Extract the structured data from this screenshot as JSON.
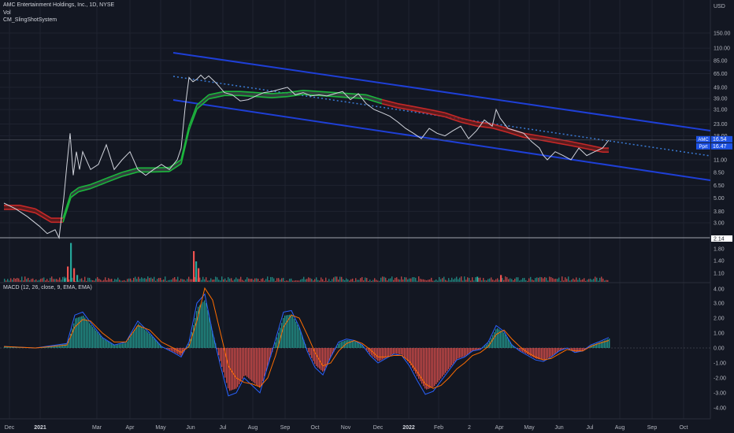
{
  "title_line": "AMC Entertainment Holdings, Inc., 1D, NYSE",
  "vol_label": "Vol",
  "indicator_label": "CM_SlingShotSystem",
  "macd_label": "MACD (12, 26, close, 9, EMA, EMA)",
  "currency": "USD",
  "colors": {
    "background": "#131722",
    "grid": "#1f2330",
    "price": "#d1d4dc",
    "ema_bull": "#1bb63c",
    "ema_bear": "#c62828",
    "channel": "#1e3fd6",
    "channel_mid": "#3a7bd5",
    "vol_up": "#26a69a",
    "vol_down": "#ef5350",
    "macd_line": "#2962ff",
    "signal_line": "#ff6d00",
    "hist_pos": "#26a69a",
    "hist_neg": "#ef5350"
  },
  "badges": [
    {
      "ticker": "AMC",
      "value": "16.54"
    },
    {
      "ticker": "Pprt",
      "value": "16.47"
    }
  ],
  "volume_badge": "2.14",
  "chart_data": [
    {
      "type": "line",
      "panel": "price",
      "scale": "log",
      "y_axis_ticks": [
        "150.00",
        "110.00",
        "85.00",
        "65.00",
        "49.00",
        "39.00",
        "31.00",
        "23.00",
        "18.00",
        "11.00",
        "8.50",
        "6.50",
        "5.00",
        "3.80",
        "3.00"
      ],
      "x_axis_ticks": [
        "Dec",
        "2021",
        "Mar",
        "Apr",
        "May",
        "Jun",
        "Jul",
        "Aug",
        "Sep",
        "Oct",
        "Nov",
        "Dec",
        "2022",
        "Feb",
        "2",
        "Apr",
        "May",
        "Jun",
        "Jul",
        "Aug",
        "Sep",
        "Oct"
      ],
      "series": [
        {
          "name": "AMC",
          "x": [
            0,
            15,
            30,
            45,
            55,
            65,
            70,
            76,
            80,
            84,
            88,
            92,
            96,
            100,
            110,
            120,
            130,
            140,
            150,
            160,
            170,
            180,
            190,
            200,
            210,
            220,
            225,
            230,
            235,
            240,
            245,
            250,
            255,
            260,
            270,
            280,
            290,
            300,
            310,
            320,
            330,
            340,
            350,
            360,
            370,
            380,
            390,
            400,
            410,
            420,
            430,
            440,
            450,
            460,
            470,
            480,
            490,
            500,
            510,
            520,
            530,
            540,
            550,
            560,
            570,
            580,
            590,
            600,
            610,
            620,
            625,
            630,
            640,
            650,
            660,
            670,
            680,
            685,
            690,
            700,
            710,
            720,
            730,
            740,
            750,
            760,
            768
          ],
          "y": [
            4.5,
            4.0,
            3.4,
            2.8,
            2.4,
            2.6,
            2.2,
            5,
            10,
            19,
            8,
            13,
            9,
            13,
            9,
            10,
            15,
            9,
            11,
            13,
            9,
            8,
            9,
            10,
            9,
            11,
            14,
            32,
            60,
            55,
            58,
            63,
            58,
            62,
            53,
            44,
            42,
            37,
            38,
            41,
            44,
            45,
            47,
            49,
            42,
            44,
            41,
            42,
            41,
            43,
            45,
            38,
            43,
            35,
            31,
            29,
            27,
            24,
            21,
            19,
            17,
            21,
            19,
            18,
            20,
            22,
            17,
            20,
            25,
            22,
            31,
            26,
            21,
            20,
            19,
            16,
            14,
            12,
            11,
            13,
            12,
            11,
            14,
            12,
            13,
            14,
            16.5
          ]
        },
        {
          "name": "EMA",
          "x": [
            0,
            20,
            40,
            60,
            75,
            85,
            95,
            110,
            130,
            150,
            170,
            190,
            210,
            225,
            235,
            245,
            260,
            280,
            300,
            320,
            340,
            360,
            380,
            400,
            420,
            440,
            460,
            480,
            500,
            520,
            540,
            560,
            580,
            600,
            620,
            640,
            660,
            680,
            700,
            720,
            740,
            760,
            768
          ],
          "y": [
            4.3,
            4.3,
            4.0,
            3.3,
            3.3,
            5.5,
            6.2,
            6.6,
            7.5,
            8.5,
            9.3,
            9.3,
            9.4,
            11,
            22,
            34,
            42,
            45,
            45,
            44,
            43,
            44,
            46,
            45,
            44,
            43,
            42,
            38,
            35,
            33,
            31,
            29,
            26,
            24,
            23,
            21,
            19,
            18,
            17,
            16,
            15,
            14,
            14
          ]
        }
      ]
    },
    {
      "type": "bar",
      "panel": "volume",
      "y_axis_ticks": [
        "1.80",
        "1.40",
        "1.10"
      ],
      "x": [
        76,
        80,
        84,
        88,
        92,
        240,
        243,
        246,
        600,
        630
      ],
      "values": [
        1.1,
        1.45,
        2.14,
        1.4,
        1.2,
        1.9,
        1.6,
        1.4,
        1.15,
        1.2
      ]
    },
    {
      "type": "line",
      "panel": "macd",
      "y_axis_ticks": [
        "4.00",
        "3.00",
        "2.00",
        "1.00",
        "0.00",
        "-1.00",
        "-2.00",
        "-3.00",
        "-4.00"
      ],
      "series": [
        {
          "name": "MACD",
          "x": [
            0,
            40,
            80,
            90,
            100,
            110,
            125,
            140,
            155,
            170,
            185,
            200,
            215,
            225,
            235,
            245,
            255,
            265,
            275,
            285,
            295,
            305,
            315,
            325,
            335,
            345,
            355,
            365,
            375,
            385,
            395,
            405,
            415,
            425,
            435,
            445,
            455,
            465,
            475,
            485,
            495,
            505,
            515,
            525,
            535,
            545,
            555,
            565,
            575,
            585,
            595,
            605,
            615,
            625,
            635,
            645,
            655,
            665,
            675,
            685,
            695,
            705,
            715,
            725,
            735,
            745,
            755,
            768
          ],
          "y": [
            0.1,
            0.0,
            0.3,
            2.2,
            2.4,
            1.7,
            0.7,
            0.2,
            0.4,
            1.8,
            1.0,
            0.1,
            -0.3,
            -0.6,
            0.4,
            3.0,
            3.6,
            1.0,
            -1.2,
            -3.2,
            -3.0,
            -2.0,
            -2.5,
            -3.0,
            -1.2,
            0.6,
            2.4,
            2.5,
            1.4,
            -0.2,
            -1.3,
            -1.8,
            -0.6,
            0.4,
            0.6,
            0.5,
            0.2,
            -0.5,
            -1.0,
            -0.7,
            -0.4,
            -0.5,
            -1.2,
            -2.2,
            -3.1,
            -2.9,
            -2.2,
            -1.5,
            -0.8,
            -0.6,
            -0.2,
            -0.1,
            0.4,
            1.5,
            1.1,
            0.2,
            -0.2,
            -0.5,
            -0.8,
            -0.9,
            -0.6,
            -0.2,
            0.0,
            -0.3,
            -0.2,
            0.2,
            0.4,
            0.7
          ]
        },
        {
          "name": "Signal",
          "x": [
            0,
            40,
            80,
            90,
            100,
            110,
            125,
            140,
            155,
            170,
            185,
            200,
            215,
            225,
            235,
            245,
            255,
            265,
            275,
            285,
            295,
            305,
            315,
            325,
            335,
            345,
            355,
            365,
            375,
            385,
            395,
            405,
            415,
            425,
            435,
            445,
            455,
            465,
            475,
            485,
            495,
            505,
            515,
            525,
            535,
            545,
            555,
            565,
            575,
            585,
            595,
            605,
            615,
            625,
            635,
            645,
            655,
            665,
            675,
            685,
            695,
            705,
            715,
            725,
            735,
            745,
            755,
            768
          ],
          "y": [
            0.1,
            0.0,
            0.2,
            1.4,
            1.9,
            1.8,
            1.0,
            0.4,
            0.4,
            1.5,
            1.2,
            0.4,
            0.0,
            -0.3,
            0.1,
            1.8,
            4.0,
            3.2,
            1.0,
            -1.2,
            -2.0,
            -2.3,
            -2.4,
            -2.6,
            -2.0,
            -0.5,
            1.4,
            2.2,
            2.0,
            0.9,
            -0.3,
            -1.2,
            -1.0,
            -0.2,
            0.3,
            0.5,
            0.3,
            -0.1,
            -0.6,
            -0.6,
            -0.5,
            -0.5,
            -0.9,
            -1.6,
            -2.4,
            -2.7,
            -2.5,
            -2.0,
            -1.4,
            -1.0,
            -0.5,
            -0.3,
            0.1,
            0.9,
            1.2,
            0.6,
            0.1,
            -0.3,
            -0.6,
            -0.8,
            -0.7,
            -0.4,
            -0.1,
            -0.2,
            -0.2,
            0.1,
            0.3,
            0.5
          ]
        }
      ]
    }
  ]
}
